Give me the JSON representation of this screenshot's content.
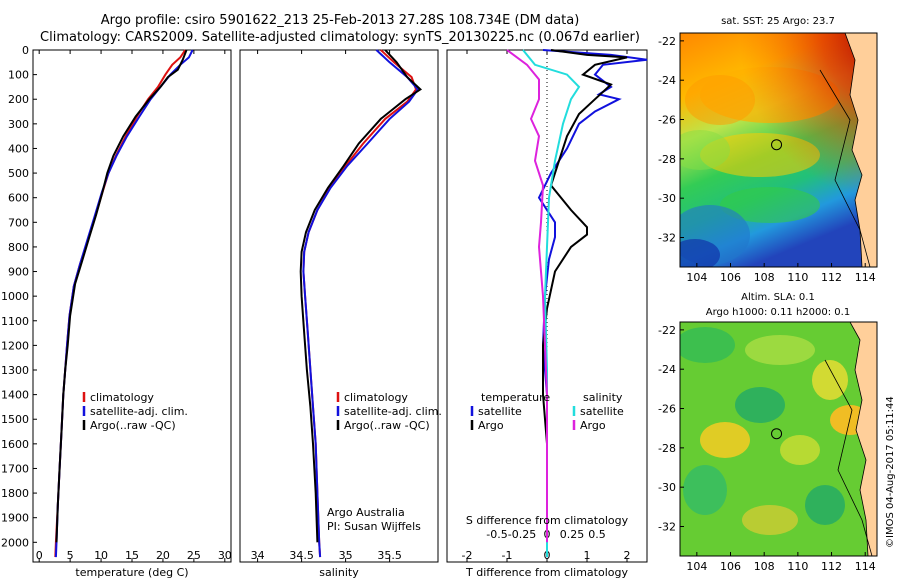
{
  "header": {
    "line1": "Argo profile: csiro 5901622_213 25-Feb-2013 27.28S 108.734E (DM data)",
    "line2": "Climatology: CARS2009. Satellite-adjusted climatology: synTS_20130225.nc (0.067d earlier)"
  },
  "colors": {
    "climatology": "#dd1111",
    "satellite": "#1111dd",
    "argo": "#000000",
    "sat_salinity": "#22dddd",
    "argo_salinity": "#dd22dd"
  },
  "chart_data": [
    {
      "type": "line",
      "id": "temperature",
      "xlabel": "temperature (deg C)",
      "ylabel": "",
      "xlim": [
        -1,
        31
      ],
      "ylim": [
        2080,
        0
      ],
      "xticks": [
        0,
        5,
        10,
        15,
        20,
        25,
        30
      ],
      "yticks": [
        0,
        100,
        200,
        300,
        400,
        500,
        600,
        700,
        800,
        900,
        1000,
        1100,
        1200,
        1300,
        1400,
        1500,
        1600,
        1700,
        1800,
        1900,
        2000
      ],
      "legend": [
        "climatology",
        "satellite-adj. clim.",
        "Argo(..raw -QC)"
      ],
      "series": [
        {
          "name": "climatology",
          "color_key": "climatology",
          "points": [
            [
              23.6,
              0
            ],
            [
              22.8,
              30
            ],
            [
              21.5,
              60
            ],
            [
              20.4,
              100
            ],
            [
              19.2,
              150
            ],
            [
              17.6,
              200
            ],
            [
              15.8,
              270
            ],
            [
              14.0,
              350
            ],
            [
              12.4,
              430
            ],
            [
              11.2,
              500
            ],
            [
              10.2,
              580
            ],
            [
              9.0,
              680
            ],
            [
              7.9,
              770
            ],
            [
              6.6,
              870
            ],
            [
              5.6,
              960
            ],
            [
              4.9,
              1080
            ],
            [
              4.5,
              1200
            ],
            [
              4.2,
              1300
            ],
            [
              3.9,
              1400
            ],
            [
              3.6,
              1550
            ],
            [
              3.3,
              1700
            ],
            [
              3.0,
              1850
            ],
            [
              2.7,
              2000
            ],
            [
              2.6,
              2060
            ]
          ]
        },
        {
          "name": "satellite-adj. clim.",
          "color_key": "satellite",
          "points": [
            [
              24.8,
              0
            ],
            [
              24.2,
              30
            ],
            [
              22.8,
              60
            ],
            [
              21.2,
              100
            ],
            [
              19.6,
              150
            ],
            [
              18.0,
              200
            ],
            [
              16.2,
              270
            ],
            [
              14.2,
              350
            ],
            [
              12.5,
              430
            ],
            [
              11.2,
              500
            ],
            [
              10.1,
              580
            ],
            [
              8.9,
              680
            ],
            [
              7.8,
              770
            ],
            [
              6.6,
              870
            ],
            [
              5.6,
              960
            ],
            [
              4.9,
              1080
            ],
            [
              4.5,
              1200
            ],
            [
              4.2,
              1300
            ],
            [
              3.9,
              1400
            ],
            [
              3.6,
              1550
            ],
            [
              3.3,
              1700
            ],
            [
              3.0,
              1850
            ],
            [
              2.8,
              2000
            ],
            [
              2.7,
              2060
            ]
          ]
        },
        {
          "name": "Argo(..raw -QC)",
          "color_key": "argo",
          "points": [
            [
              23.8,
              0
            ],
            [
              23.2,
              40
            ],
            [
              22.4,
              80
            ],
            [
              20.8,
              110
            ],
            [
              19.6,
              150
            ],
            [
              17.8,
              200
            ],
            [
              15.6,
              270
            ],
            [
              13.6,
              350
            ],
            [
              12.0,
              430
            ],
            [
              11.0,
              500
            ],
            [
              10.2,
              580
            ],
            [
              9.2,
              670
            ],
            [
              8.1,
              760
            ],
            [
              6.9,
              860
            ],
            [
              5.8,
              950
            ],
            [
              5.0,
              1080
            ],
            [
              4.6,
              1200
            ],
            [
              4.2,
              1300
            ],
            [
              3.9,
              1400
            ],
            [
              3.6,
              1550
            ],
            [
              3.3,
              1700
            ],
            [
              3.0,
              1850
            ],
            [
              2.8,
              2000
            ]
          ]
        }
      ]
    },
    {
      "type": "line",
      "id": "salinity",
      "xlabel": "salinity",
      "xlim": [
        33.8,
        36.05
      ],
      "ylim": [
        2080,
        0
      ],
      "xticks": [
        34,
        34.5,
        35,
        35.5
      ],
      "legend": [
        "climatology",
        "satellite-adj. clim.",
        "Argo(..raw -QC)"
      ],
      "annotation": [
        "Argo Australia",
        "PI: Susan Wijffels"
      ],
      "series": [
        {
          "name": "climatology",
          "color_key": "climatology",
          "points": [
            [
              35.4,
              0
            ],
            [
              35.55,
              50
            ],
            [
              35.75,
              110
            ],
            [
              35.8,
              160
            ],
            [
              35.7,
              210
            ],
            [
              35.45,
              280
            ],
            [
              35.2,
              380
            ],
            [
              35.0,
              470
            ],
            [
              34.82,
              560
            ],
            [
              34.68,
              650
            ],
            [
              34.58,
              740
            ],
            [
              34.53,
              820
            ],
            [
              34.52,
              900
            ],
            [
              34.54,
              1000
            ],
            [
              34.57,
              1150
            ],
            [
              34.6,
              1300
            ],
            [
              34.63,
              1450
            ],
            [
              34.66,
              1600
            ],
            [
              34.68,
              1800
            ],
            [
              34.7,
              2000
            ],
            [
              34.71,
              2060
            ]
          ]
        },
        {
          "name": "satellite-adj. clim.",
          "color_key": "satellite",
          "points": [
            [
              35.35,
              0
            ],
            [
              35.5,
              50
            ],
            [
              35.7,
              110
            ],
            [
              35.82,
              160
            ],
            [
              35.72,
              210
            ],
            [
              35.5,
              280
            ],
            [
              35.25,
              380
            ],
            [
              35.02,
              470
            ],
            [
              34.83,
              560
            ],
            [
              34.68,
              650
            ],
            [
              34.58,
              740
            ],
            [
              34.53,
              820
            ],
            [
              34.52,
              900
            ],
            [
              34.54,
              1000
            ],
            [
              34.57,
              1150
            ],
            [
              34.6,
              1300
            ],
            [
              34.63,
              1450
            ],
            [
              34.66,
              1600
            ],
            [
              34.68,
              1800
            ],
            [
              34.7,
              2000
            ],
            [
              34.71,
              2060
            ]
          ]
        },
        {
          "name": "Argo(..raw -QC)",
          "color_key": "argo",
          "points": [
            [
              35.45,
              0
            ],
            [
              35.58,
              50
            ],
            [
              35.7,
              110
            ],
            [
              35.85,
              160
            ],
            [
              35.68,
              200
            ],
            [
              35.4,
              280
            ],
            [
              35.15,
              380
            ],
            [
              34.98,
              470
            ],
            [
              34.8,
              560
            ],
            [
              34.65,
              650
            ],
            [
              34.55,
              740
            ],
            [
              34.5,
              820
            ],
            [
              34.49,
              900
            ],
            [
              34.5,
              1000
            ],
            [
              34.53,
              1150
            ],
            [
              34.56,
              1300
            ],
            [
              34.6,
              1450
            ],
            [
              34.63,
              1600
            ],
            [
              34.66,
              1800
            ],
            [
              34.68,
              2000
            ]
          ]
        }
      ]
    },
    {
      "type": "line",
      "id": "difference",
      "xlabel": "T difference from climatology",
      "xlabel_top": "S difference from climatology",
      "xlim": [
        -2.5,
        2.5
      ],
      "ylim": [
        2080,
        0
      ],
      "xticks": [
        -2,
        -1,
        0,
        1,
        2
      ],
      "sticks": [
        -0.5,
        -0.25,
        0,
        0.25,
        0.5
      ],
      "legend_temp": {
        "title": "temperature",
        "items": [
          "satellite",
          "Argo"
        ]
      },
      "legend_sal": {
        "title": "salinity",
        "items": [
          "satellite",
          "Argo"
        ]
      },
      "series": [
        {
          "name": "satellite",
          "group": "temperature",
          "color_key": "satellite",
          "points": [
            [
              -0.1,
              0
            ],
            [
              1.6,
              20
            ],
            [
              2.5,
              40
            ],
            [
              1.4,
              60
            ],
            [
              1.2,
              100
            ],
            [
              1.6,
              150
            ],
            [
              1.3,
              180
            ],
            [
              1.8,
              200
            ],
            [
              1.2,
              250
            ],
            [
              0.8,
              300
            ],
            [
              0.5,
              400
            ],
            [
              0.1,
              500
            ],
            [
              -0.2,
              600
            ],
            [
              0.2,
              700
            ],
            [
              0.2,
              760
            ],
            [
              0.05,
              850
            ],
            [
              -0.05,
              1000
            ],
            [
              -0.1,
              1200
            ],
            [
              0.0,
              1400
            ],
            [
              0.0,
              2060
            ]
          ]
        },
        {
          "name": "Argo",
          "group": "temperature",
          "color_key": "argo",
          "points": [
            [
              0.1,
              0
            ],
            [
              1.0,
              20
            ],
            [
              2.0,
              30
            ],
            [
              1.2,
              60
            ],
            [
              0.9,
              100
            ],
            [
              1.6,
              140
            ],
            [
              1.2,
              200
            ],
            [
              0.8,
              260
            ],
            [
              0.5,
              350
            ],
            [
              0.3,
              450
            ],
            [
              0.1,
              550
            ],
            [
              0.6,
              650
            ],
            [
              1.0,
              720
            ],
            [
              1.0,
              750
            ],
            [
              0.6,
              800
            ],
            [
              0.2,
              900
            ],
            [
              0.0,
              1050
            ],
            [
              -0.1,
              1200
            ],
            [
              -0.1,
              1400
            ],
            [
              0.0,
              1600
            ],
            [
              0.0,
              2000
            ]
          ]
        },
        {
          "name": "satellite",
          "group": "salinity",
          "color_key": "sat_salinity",
          "points": [
            [
              -0.6,
              0
            ],
            [
              -0.3,
              60
            ],
            [
              0.5,
              100
            ],
            [
              0.8,
              150
            ],
            [
              0.6,
              200
            ],
            [
              0.4,
              300
            ],
            [
              0.2,
              450
            ],
            [
              0.05,
              600
            ],
            [
              0.0,
              800
            ],
            [
              -0.05,
              1000
            ],
            [
              0.0,
              1300
            ],
            [
              0.0,
              2060
            ]
          ]
        },
        {
          "name": "Argo",
          "group": "salinity",
          "color_key": "argo_salinity",
          "points": [
            [
              -1.0,
              0
            ],
            [
              -0.5,
              60
            ],
            [
              -0.2,
              120
            ],
            [
              -0.2,
              200
            ],
            [
              -0.4,
              280
            ],
            [
              -0.2,
              350
            ],
            [
              -0.3,
              450
            ],
            [
              -0.1,
              550
            ],
            [
              -0.15,
              700
            ],
            [
              -0.2,
              800
            ],
            [
              -0.15,
              900
            ],
            [
              -0.1,
              1000
            ],
            [
              -0.05,
              1200
            ],
            [
              0.0,
              1400
            ],
            [
              0.0,
              1800
            ],
            [
              0.0,
              2000
            ]
          ]
        }
      ]
    },
    {
      "type": "heatmap",
      "id": "sst-map",
      "title": "sat. SST: 25 Argo: 23.7",
      "xlim": [
        103,
        114.7
      ],
      "ylim": [
        -33.5,
        -21.6
      ],
      "xticks": [
        104,
        106,
        108,
        110,
        112,
        114
      ],
      "yticks": [
        -22,
        -24,
        -26,
        -28,
        -30,
        -32
      ],
      "marker": {
        "lon": 108.734,
        "lat": -27.28
      }
    },
    {
      "type": "heatmap",
      "id": "sla-map",
      "title_lines": [
        "Altim. SLA: 0.1",
        "Argo h1000: 0.11 h2000: 0.1"
      ],
      "xlim": [
        103,
        114.7
      ],
      "ylim": [
        -33.5,
        -21.6
      ],
      "xticks": [
        104,
        106,
        108,
        110,
        112,
        114
      ],
      "yticks": [
        -22,
        -24,
        -26,
        -28,
        -30,
        -32
      ],
      "marker": {
        "lon": 108.734,
        "lat": -27.28
      }
    }
  ],
  "footer": {
    "credit": "©IMOS 04-Aug-2017 05:11:44"
  }
}
